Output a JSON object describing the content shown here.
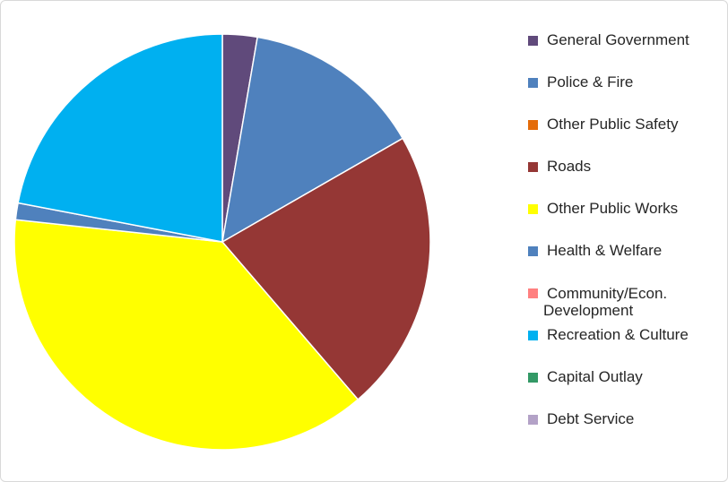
{
  "chart_data": {
    "type": "pie",
    "title": "",
    "start_angle_deg": 0,
    "direction": "clockwise",
    "legend_position": "right",
    "slices": [
      {
        "label": "General Government",
        "value": 2.7,
        "color": "#604a7b"
      },
      {
        "label": "Police & Fire",
        "value": 14.0,
        "color": "#4f81bd"
      },
      {
        "label": "Other Public Safety",
        "value": 0.0,
        "color": "#e46c0a"
      },
      {
        "label": "Roads",
        "value": 22.0,
        "color": "#953735"
      },
      {
        "label": "Other Public Works",
        "value": 38.0,
        "color": "#ffff00"
      },
      {
        "label": "Health & Welfare",
        "value": 1.3,
        "color": "#4f81bd"
      },
      {
        "label": "Community/Econ.\nDevelopment",
        "value": 0.0,
        "color": "#ff8080"
      },
      {
        "label": "Recreation & Culture",
        "value": 22.0,
        "color": "#00b0f0"
      },
      {
        "label": "Capital Outlay",
        "value": 0.0,
        "color": "#339966"
      },
      {
        "label": "Debt Service",
        "value": 0.0,
        "color": "#b3a2c7"
      }
    ]
  }
}
